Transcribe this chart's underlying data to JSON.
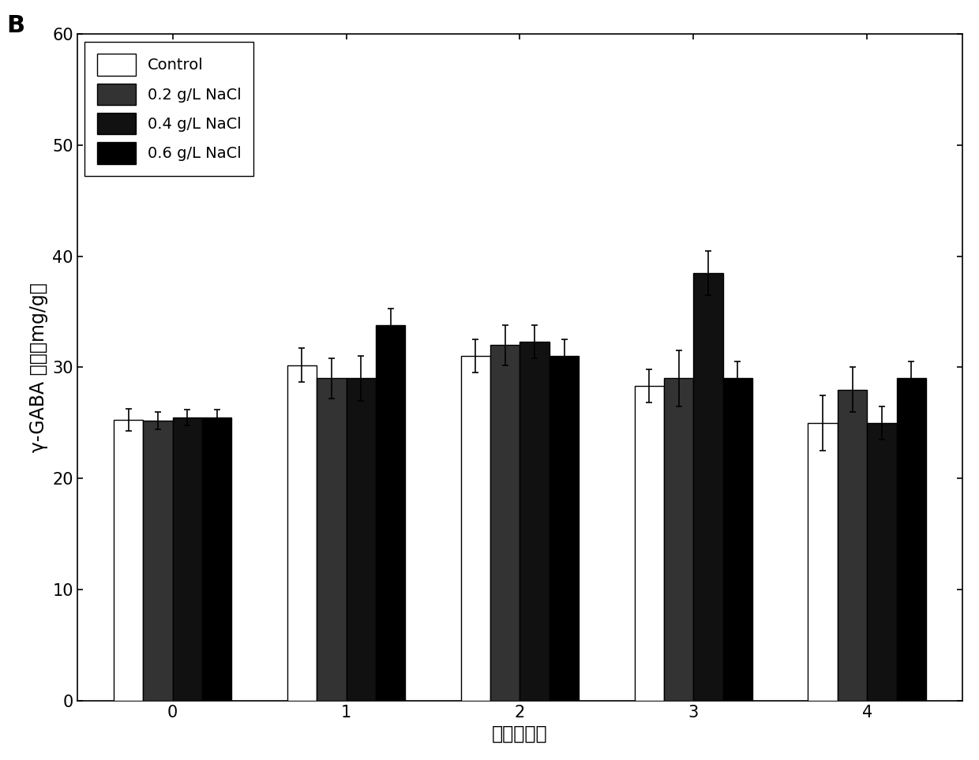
{
  "title": "B",
  "xlabel": "时间（天）",
  "ylabel": "γ-GABA 含量（mg/g）",
  "ylim": [
    0,
    60
  ],
  "yticks": [
    0,
    10,
    20,
    30,
    40,
    50,
    60
  ],
  "time_points": [
    0,
    1,
    2,
    3,
    4
  ],
  "bar_width": 0.17,
  "series": [
    {
      "label": "Control",
      "color": "white",
      "edgecolor": "black",
      "values": [
        25.3,
        30.2,
        31.0,
        28.3,
        25.0
      ],
      "errors": [
        1.0,
        1.5,
        1.5,
        1.5,
        2.5
      ]
    },
    {
      "label": "0.2 g/L NaCl",
      "color": "#333333",
      "edgecolor": "black",
      "values": [
        25.2,
        29.0,
        32.0,
        29.0,
        28.0
      ],
      "errors": [
        0.8,
        1.8,
        1.8,
        2.5,
        2.0
      ]
    },
    {
      "label": "0.4 g/L NaCl",
      "color": "#111111",
      "edgecolor": "black",
      "values": [
        25.5,
        29.0,
        32.3,
        38.5,
        25.0
      ],
      "errors": [
        0.7,
        2.0,
        1.5,
        2.0,
        1.5
      ]
    },
    {
      "label": "0.6 g/L NaCl",
      "color": "#000000",
      "edgecolor": "black",
      "values": [
        25.5,
        33.8,
        31.0,
        29.0,
        29.0
      ],
      "errors": [
        0.7,
        1.5,
        1.5,
        1.5,
        1.5
      ]
    }
  ],
  "legend_loc": "upper left",
  "background_color": "white",
  "fontsize_title": 22,
  "fontsize_axis_label": 17,
  "fontsize_tick": 15,
  "fontsize_legend": 14
}
